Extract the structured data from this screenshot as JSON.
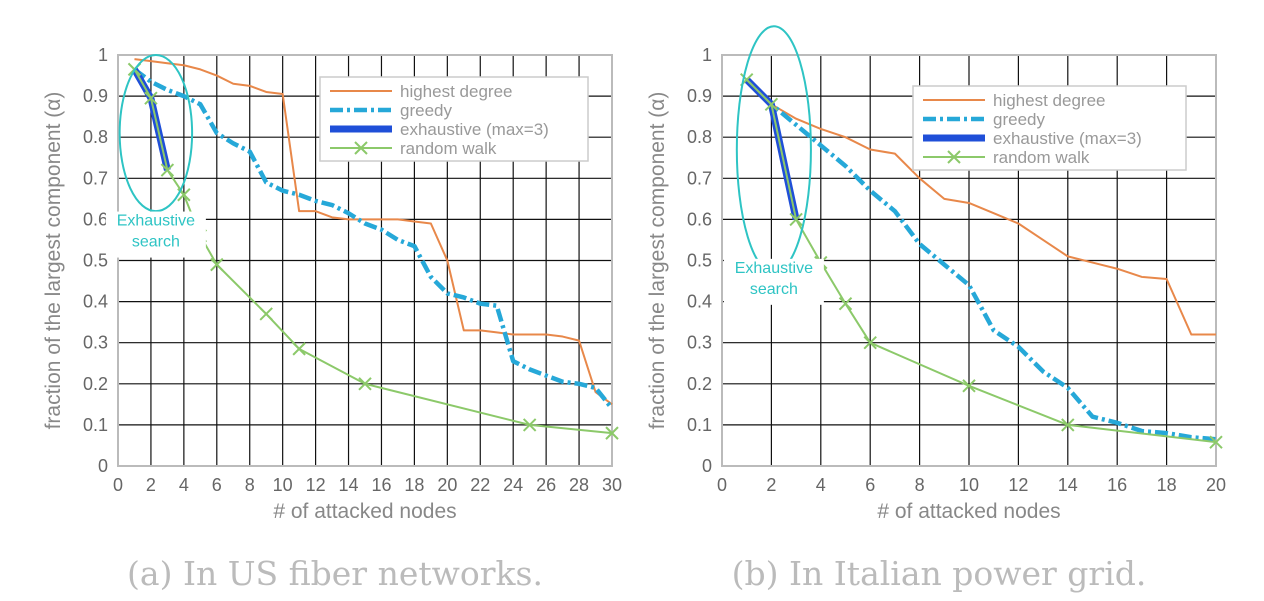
{
  "colors": {
    "highest_degree": "#e8884a",
    "greedy": "#26a8d8",
    "exhaustive": "#1f4fd8",
    "exhaustive_inner": "#4a7a3a",
    "random_walk": "#8cc96a",
    "annotation": "#2ec4c4"
  },
  "chart_data": [
    {
      "type": "line",
      "caption": "(a) In US fiber networks.",
      "xlabel": "# of attacked nodes",
      "ylabel": "fraction of the largest component (α)",
      "xlim": [
        0,
        30
      ],
      "ylim": [
        0,
        1
      ],
      "xticks": [
        0,
        2,
        4,
        6,
        8,
        10,
        12,
        14,
        16,
        18,
        20,
        22,
        24,
        26,
        28,
        30
      ],
      "yticks": [
        0,
        0.1,
        0.2,
        0.3,
        0.4,
        0.5,
        0.6,
        0.7,
        0.8,
        0.9,
        1
      ],
      "grid": true,
      "legend": "top-right",
      "annotation": {
        "lines": [
          "Exhaustive",
          "search"
        ],
        "ellipse_center": [
          2.3,
          0.81
        ],
        "ellipse_radii": [
          2.2,
          0.19
        ],
        "text_pos": [
          2.3,
          0.585
        ]
      },
      "series": [
        {
          "name": "highest degree",
          "key": "highest_degree",
          "style": "solid",
          "x": [
            1,
            2,
            3,
            4,
            5,
            6,
            7,
            8,
            9,
            10,
            11,
            12,
            13,
            14,
            15,
            16,
            17,
            18,
            19,
            20,
            21,
            22,
            23,
            24,
            25,
            26,
            27,
            28,
            29,
            30
          ],
          "y": [
            0.99,
            0.985,
            0.98,
            0.975,
            0.965,
            0.95,
            0.93,
            0.925,
            0.91,
            0.905,
            0.62,
            0.62,
            0.605,
            0.6,
            0.6,
            0.6,
            0.6,
            0.595,
            0.59,
            0.5,
            0.33,
            0.33,
            0.325,
            0.32,
            0.32,
            0.32,
            0.315,
            0.305,
            0.18,
            0.15
          ]
        },
        {
          "name": "greedy",
          "key": "greedy",
          "style": "dashdot",
          "x": [
            1,
            2,
            3,
            4,
            5,
            6,
            7,
            8,
            9,
            10,
            11,
            12,
            13,
            14,
            15,
            16,
            17,
            18,
            19,
            20,
            21,
            22,
            23,
            24,
            25,
            26,
            27,
            28,
            29,
            30
          ],
          "y": [
            0.965,
            0.935,
            0.915,
            0.9,
            0.88,
            0.81,
            0.785,
            0.765,
            0.69,
            0.67,
            0.66,
            0.645,
            0.635,
            0.615,
            0.59,
            0.575,
            0.55,
            0.535,
            0.46,
            0.42,
            0.41,
            0.395,
            0.39,
            0.255,
            0.235,
            0.22,
            0.205,
            0.2,
            0.19,
            0.14
          ]
        },
        {
          "name": "exhaustive (max=3)",
          "key": "exhaustive",
          "style": "thick",
          "x": [
            1,
            2,
            3
          ],
          "y": [
            0.965,
            0.895,
            0.72
          ]
        },
        {
          "name": "random walk",
          "key": "random_walk",
          "style": "marker",
          "x": [
            1,
            2,
            3,
            4,
            5,
            6,
            9,
            11,
            15,
            25,
            30
          ],
          "y": [
            0.965,
            0.895,
            0.72,
            0.66,
            0.56,
            0.49,
            0.37,
            0.285,
            0.2,
            0.1,
            0.08
          ]
        }
      ]
    },
    {
      "type": "line",
      "caption": "(b) In Italian power grid.",
      "xlabel": "# of attacked nodes",
      "ylabel": "fraction of the largest component (α)",
      "xlim": [
        0,
        20
      ],
      "ylim": [
        0,
        1
      ],
      "xticks": [
        0,
        2,
        4,
        6,
        8,
        10,
        12,
        14,
        16,
        18,
        20
      ],
      "yticks": [
        0,
        0.1,
        0.2,
        0.3,
        0.4,
        0.5,
        0.6,
        0.7,
        0.8,
        0.9,
        1
      ],
      "grid": true,
      "legend": "top-right",
      "annotation": {
        "lines": [
          "Exhaustive",
          "search"
        ],
        "ellipse_center": [
          2.1,
          0.77
        ],
        "ellipse_radii": [
          1.5,
          0.3
        ],
        "text_pos": [
          2.1,
          0.47
        ]
      },
      "series": [
        {
          "name": "highest degree",
          "key": "highest_degree",
          "style": "solid",
          "x": [
            1,
            2,
            3,
            4,
            5,
            6,
            7,
            8,
            9,
            10,
            11,
            12,
            13,
            14,
            15,
            16,
            17,
            18,
            19,
            20
          ],
          "y": [
            0.94,
            0.88,
            0.845,
            0.82,
            0.8,
            0.77,
            0.76,
            0.7,
            0.65,
            0.64,
            0.615,
            0.59,
            0.55,
            0.51,
            0.495,
            0.48,
            0.46,
            0.455,
            0.32,
            0.32
          ]
        },
        {
          "name": "greedy",
          "key": "greedy",
          "style": "dashdot",
          "x": [
            1,
            2,
            3,
            4,
            5,
            6,
            7,
            8,
            9,
            10,
            11,
            12,
            13,
            14,
            15,
            16,
            17,
            18,
            19,
            20
          ],
          "y": [
            0.94,
            0.88,
            0.83,
            0.78,
            0.73,
            0.67,
            0.62,
            0.54,
            0.49,
            0.44,
            0.33,
            0.29,
            0.23,
            0.19,
            0.12,
            0.105,
            0.085,
            0.08,
            0.07,
            0.065
          ]
        },
        {
          "name": "exhaustive (max=3)",
          "key": "exhaustive",
          "style": "thick",
          "x": [
            1,
            2,
            3
          ],
          "y": [
            0.94,
            0.88,
            0.6
          ]
        },
        {
          "name": "random walk",
          "key": "random_walk",
          "style": "marker",
          "x": [
            1,
            2,
            3,
            4,
            5,
            6,
            10,
            14,
            20
          ],
          "y": [
            0.94,
            0.88,
            0.6,
            0.495,
            0.395,
            0.3,
            0.195,
            0.1,
            0.058
          ]
        }
      ]
    }
  ]
}
